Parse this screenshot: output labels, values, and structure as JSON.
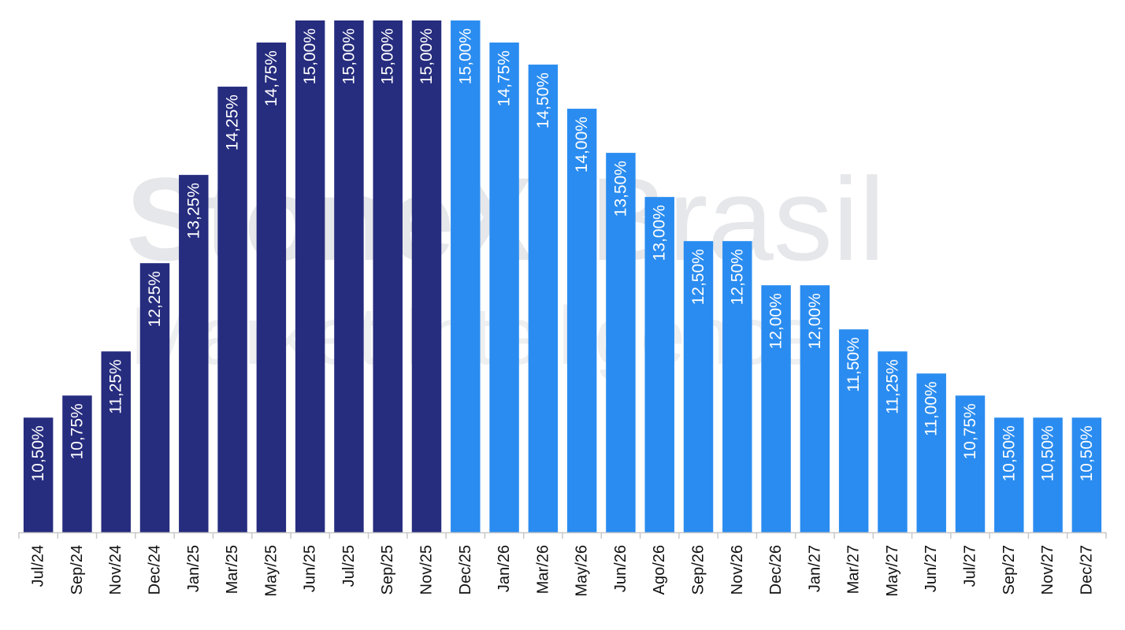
{
  "watermark": {
    "line1_bold": "StoneX",
    "line1_light": "Brasil",
    "line2": "Market Intelligence"
  },
  "chart_data": {
    "type": "bar",
    "title": "",
    "xlabel": "",
    "ylabel": "",
    "ylim": [
      0,
      15
    ],
    "grid": false,
    "legend": "none",
    "categories": [
      "Jul/24",
      "Sep/24",
      "Nov/24",
      "Dec/24",
      "Jan/25",
      "Mar/25",
      "May/25",
      "Jun/25",
      "Jul/25",
      "Sep/25",
      "Nov/25",
      "Dec/25",
      "Jan/26",
      "Mar/26",
      "May/26",
      "Jun/26",
      "Ago/26",
      "Sep/26",
      "Nov/26",
      "Dec/26",
      "Jan/27",
      "Mar/27",
      "May/27",
      "Jun/27",
      "Jul/27",
      "Sep/27",
      "Nov/27",
      "Dec/27"
    ],
    "values": [
      10.5,
      10.75,
      11.25,
      12.25,
      13.25,
      14.25,
      14.75,
      15.0,
      15.0,
      15.0,
      15.0,
      15.0,
      14.75,
      14.5,
      14.0,
      13.5,
      13.0,
      12.5,
      12.5,
      12.0,
      12.0,
      11.5,
      11.25,
      11.0,
      10.75,
      10.5,
      10.5,
      10.5
    ],
    "data_labels": [
      "10,50%",
      "10,75%",
      "11,25%",
      "12,25%",
      "13,25%",
      "14,25%",
      "14,75%",
      "15,00%",
      "15,00%",
      "15,00%",
      "15,00%",
      "15,00%",
      "14,75%",
      "14,50%",
      "14,00%",
      "13,50%",
      "13,00%",
      "12,50%",
      "12,50%",
      "12,00%",
      "12,00%",
      "11,50%",
      "11,25%",
      "11,00%",
      "10,75%",
      "10,50%",
      "10,50%",
      "10,50%"
    ],
    "series_segments": [
      {
        "from_index": 0,
        "to_index": 10,
        "color": "#262c7e"
      },
      {
        "from_index": 11,
        "to_index": 27,
        "color": "#2a8cf0"
      }
    ],
    "axis_color": "#c8c8c8"
  }
}
